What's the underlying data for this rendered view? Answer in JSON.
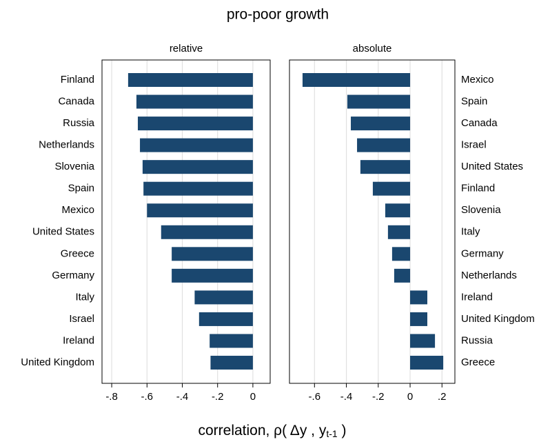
{
  "title": "pro-poor growth",
  "xlabel": [
    "correlation, ρ( Δy , y",
    "t-1",
    " )"
  ],
  "chart_data": [
    {
      "type": "bar",
      "orientation": "horizontal",
      "subtitle": "relative",
      "label_side": "left",
      "color": "#1a476f",
      "grid": true,
      "categories": [
        "Finland",
        "Canada",
        "Russia",
        "Netherlands",
        "Slovenia",
        "Spain",
        "Mexico",
        "United States",
        "Greece",
        "Germany",
        "Italy",
        "Israel",
        "Ireland",
        "United Kingdom"
      ],
      "values": [
        -0.707,
        -0.66,
        -0.652,
        -0.64,
        -0.625,
        -0.62,
        -0.6,
        -0.52,
        -0.46,
        -0.46,
        -0.33,
        -0.305,
        -0.245,
        -0.24
      ],
      "xlim": [
        -0.855,
        0.098
      ],
      "xticks": [
        {
          "value": -0.8,
          "label": "-.8"
        },
        {
          "value": -0.6,
          "label": "-.6"
        },
        {
          "value": -0.4,
          "label": "-.4"
        },
        {
          "value": -0.2,
          "label": "-.2"
        },
        0
      ]
    },
    {
      "type": "bar",
      "orientation": "horizontal",
      "subtitle": "absolute",
      "label_side": "right",
      "color": "#1a476f",
      "grid": true,
      "categories": [
        "Mexico",
        "Spain",
        "Canada",
        "Israel",
        "United States",
        "Finland",
        "Slovenia",
        "Italy",
        "Germany",
        "Netherlands",
        "Ireland",
        "United Kingdom",
        "Russia",
        "Greece"
      ],
      "values": [
        -0.675,
        -0.394,
        -0.372,
        -0.333,
        -0.312,
        -0.234,
        -0.156,
        -0.139,
        -0.113,
        -0.1,
        0.108,
        0.108,
        0.156,
        0.208
      ],
      "xlim": [
        -0.757,
        0.281
      ],
      "xticks": [
        {
          "value": -0.6,
          "label": "-.6"
        },
        {
          "value": -0.4,
          "label": "-.4"
        },
        {
          "value": -0.2,
          "label": "-.2"
        },
        0,
        {
          "value": 0.2,
          "label": ".2"
        }
      ]
    }
  ]
}
